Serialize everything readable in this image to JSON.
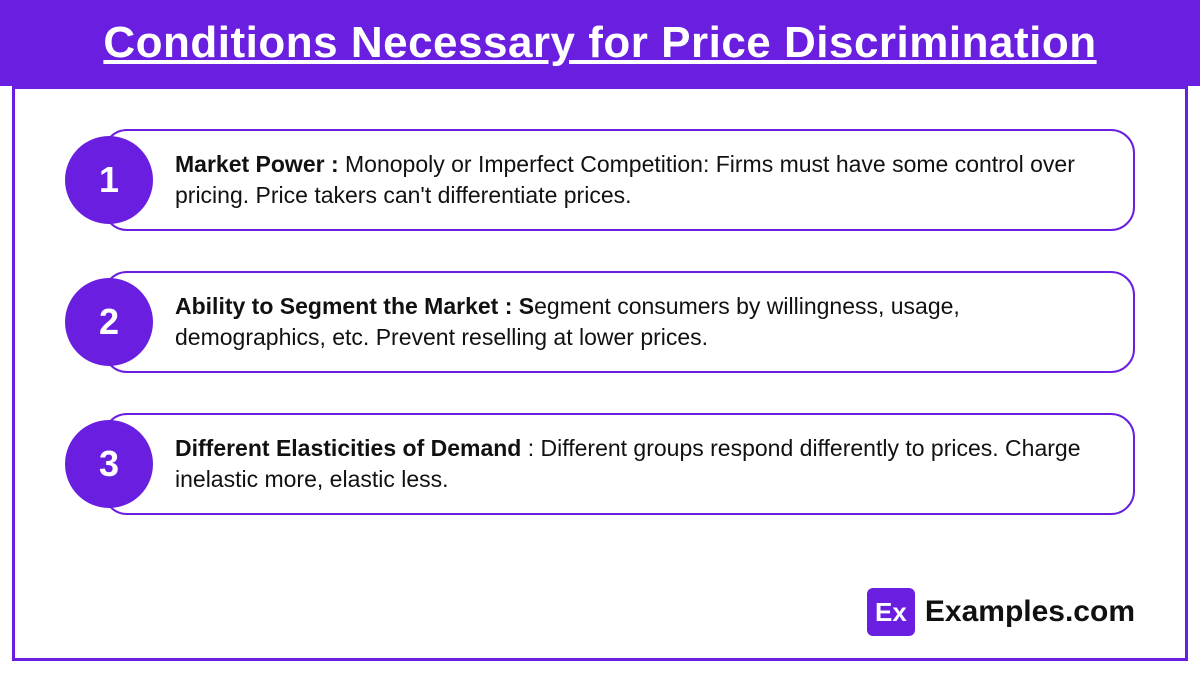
{
  "colors": {
    "accent": "#6a1fe0",
    "header_bg": "#6a1fe0",
    "header_text": "#ffffff",
    "frame_border": "#6a1fe0",
    "circle_bg": "#6a1fe0",
    "pill_border": "#6a1fe0",
    "brand_bg": "#6a1fe0"
  },
  "header": {
    "title": "Conditions Necessary for Price Discrimination"
  },
  "items": [
    {
      "number": "1",
      "bold_lead": "Market Power : ",
      "rest_bold": "",
      "text": "Monopoly or Imperfect Competition: Firms must have some control over pricing. Price takers can't differentiate prices."
    },
    {
      "number": "2",
      "bold_lead": "Ability to Segment the Market : S",
      "rest_bold": "",
      "text": "egment consumers by willingness, usage, demographics, etc. Prevent reselling at lower prices."
    },
    {
      "number": "3",
      "bold_lead": "Different Elasticities of Demand",
      "rest_bold": "",
      "text": " : Different groups respond differently to prices. Charge inelastic more, elastic less."
    }
  ],
  "brand": {
    "logo_text": "Ex",
    "name": "Examples.com"
  }
}
